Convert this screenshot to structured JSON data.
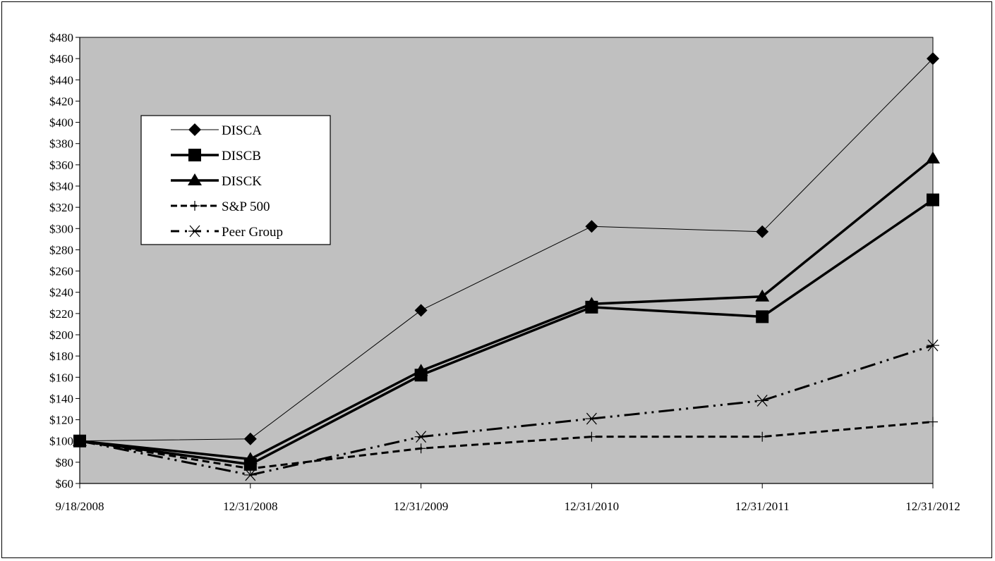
{
  "chart_data": {
    "type": "line",
    "title": "",
    "xlabel": "",
    "ylabel": "",
    "categories": [
      "9/18/2008",
      "12/31/2008",
      "12/31/2009",
      "12/31/2010",
      "12/31/2011",
      "12/31/2012"
    ],
    "ylim": [
      60,
      480
    ],
    "ytick_step": 20,
    "y_tick_prefix": "$",
    "plot_background": "#c0c0c0",
    "grid": false,
    "legend_position": "upper-left",
    "series": [
      {
        "name": "DISCA",
        "values": [
          100,
          102,
          223,
          302,
          297,
          460
        ],
        "marker": "diamond",
        "line": "thin-solid",
        "color": "#000000"
      },
      {
        "name": "DISCB",
        "values": [
          100,
          78,
          162,
          226,
          217,
          327
        ],
        "marker": "square",
        "line": "thick-solid",
        "color": "#000000"
      },
      {
        "name": "DISCK",
        "values": [
          100,
          83,
          166,
          229,
          236,
          366
        ],
        "marker": "triangle",
        "line": "thick-solid",
        "color": "#000000"
      },
      {
        "name": "S&P 500",
        "values": [
          100,
          74,
          93,
          104,
          104,
          118
        ],
        "marker": "plus",
        "line": "dashed",
        "color": "#000000"
      },
      {
        "name": "Peer Group",
        "values": [
          100,
          68,
          104,
          121,
          138,
          190
        ],
        "marker": "asterisk",
        "line": "dash-dot-dot",
        "color": "#000000"
      }
    ]
  }
}
